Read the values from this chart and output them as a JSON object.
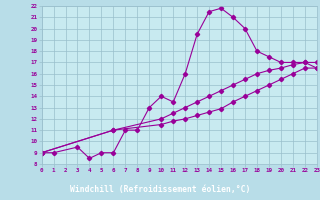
{
  "xlabel": "Windchill (Refroidissement éolien,°C)",
  "bg_color": "#b8dde8",
  "plot_bg_color": "#c8eaf0",
  "line_color": "#990099",
  "grid_color": "#9abfcc",
  "label_bg": "#880088",
  "label_fg": "#ffffff",
  "xmin": 0,
  "xmax": 23,
  "ymin": 8,
  "ymax": 22,
  "line1_x": [
    0,
    1,
    3,
    4,
    5,
    6,
    7,
    8,
    9,
    10,
    11,
    12,
    13,
    14,
    15,
    16,
    17,
    18,
    19,
    20,
    21,
    22,
    23
  ],
  "line1_y": [
    9.0,
    9.0,
    9.5,
    8.5,
    9.0,
    9.0,
    11.0,
    11.0,
    13.0,
    14.0,
    13.5,
    16.0,
    19.5,
    21.5,
    21.8,
    21.0,
    20.0,
    18.0,
    17.5,
    17.0,
    17.0,
    17.0,
    16.5
  ],
  "line2_x": [
    0,
    6,
    10,
    11,
    12,
    13,
    14,
    15,
    16,
    17,
    18,
    19,
    20,
    21,
    22,
    23
  ],
  "line2_y": [
    9.0,
    11.0,
    12.0,
    12.5,
    13.0,
    13.5,
    14.0,
    14.5,
    15.0,
    15.5,
    16.0,
    16.3,
    16.5,
    16.8,
    17.0,
    17.0
  ],
  "line3_x": [
    0,
    6,
    10,
    11,
    12,
    13,
    14,
    15,
    16,
    17,
    18,
    19,
    20,
    21,
    22,
    23
  ],
  "line3_y": [
    9.0,
    11.0,
    11.5,
    11.8,
    12.0,
    12.3,
    12.6,
    12.9,
    13.5,
    14.0,
    14.5,
    15.0,
    15.5,
    16.0,
    16.5,
    16.5
  ]
}
